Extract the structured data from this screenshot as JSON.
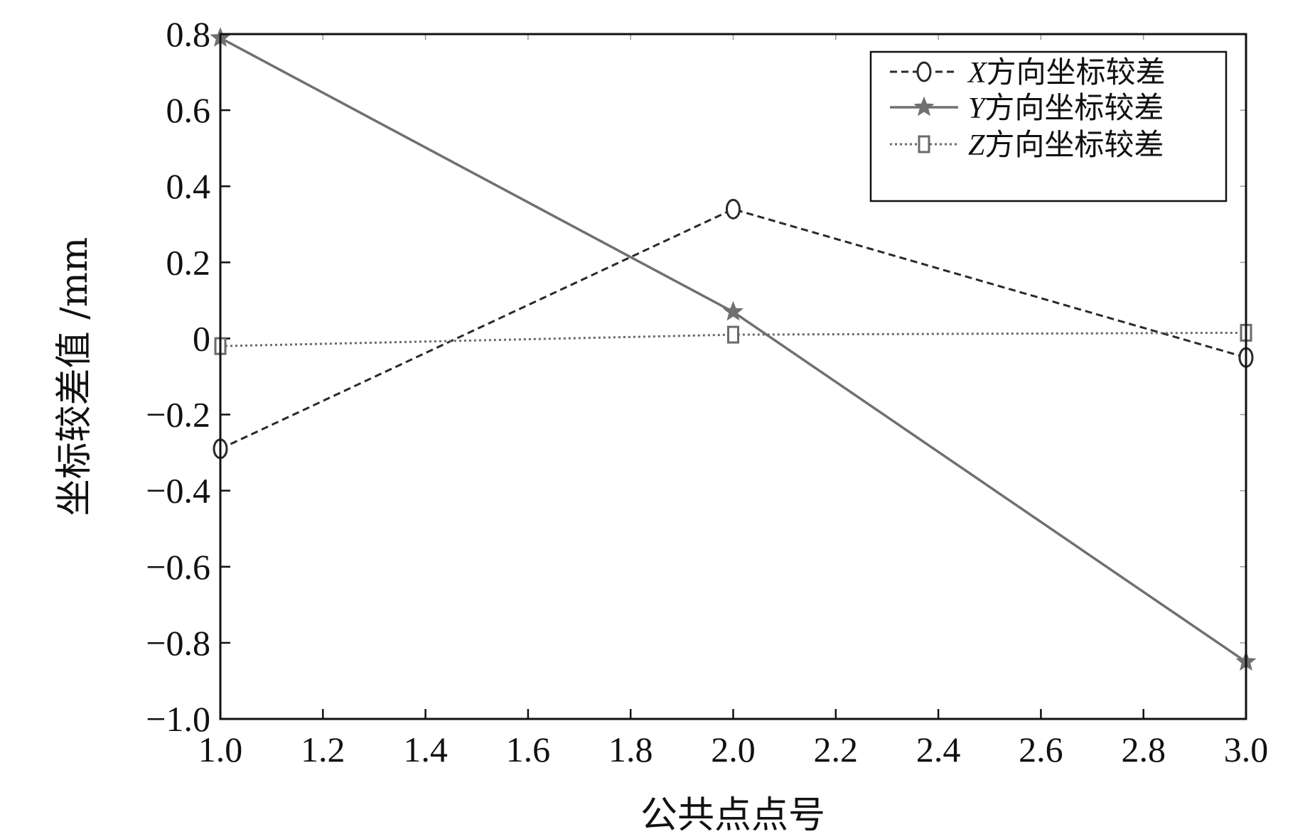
{
  "chart_data": {
    "type": "line",
    "title": "",
    "xlabel": "公共点点号",
    "ylabel": "坐标较差值 /mm",
    "xlim": [
      1.0,
      3.0
    ],
    "ylim": [
      -1.0,
      0.8
    ],
    "x_ticks": [
      "1.0",
      "1.2",
      "1.4",
      "1.6",
      "1.8",
      "2.0",
      "2.2",
      "2.4",
      "2.6",
      "2.8",
      "3.0"
    ],
    "y_ticks": [
      "0.8",
      "0.6",
      "0.4",
      "0.2",
      "0",
      "−0.2",
      "−0.4",
      "−0.6",
      "−0.8",
      "−1.0"
    ],
    "legend_position": "top-right",
    "grid": false,
    "series": [
      {
        "name_var": "X",
        "name_text": "方向坐标较差",
        "x": [
          1.0,
          2.0,
          3.0
        ],
        "y": [
          -0.29,
          0.34,
          -0.05
        ],
        "marker": "circle",
        "line_style": "dashed",
        "color": "#2a2a2a"
      },
      {
        "name_var": "Y",
        "name_text": "方向坐标较差",
        "x": [
          1.0,
          2.0,
          3.0
        ],
        "y": [
          0.79,
          0.07,
          -0.85
        ],
        "marker": "star",
        "line_style": "solid",
        "color": "#707070"
      },
      {
        "name_var": "Z",
        "name_text": "方向坐标较差",
        "x": [
          1.0,
          2.0,
          3.0
        ],
        "y": [
          -0.02,
          0.01,
          0.015
        ],
        "marker": "square",
        "line_style": "dotted",
        "color": "#6a6a6a"
      }
    ]
  }
}
